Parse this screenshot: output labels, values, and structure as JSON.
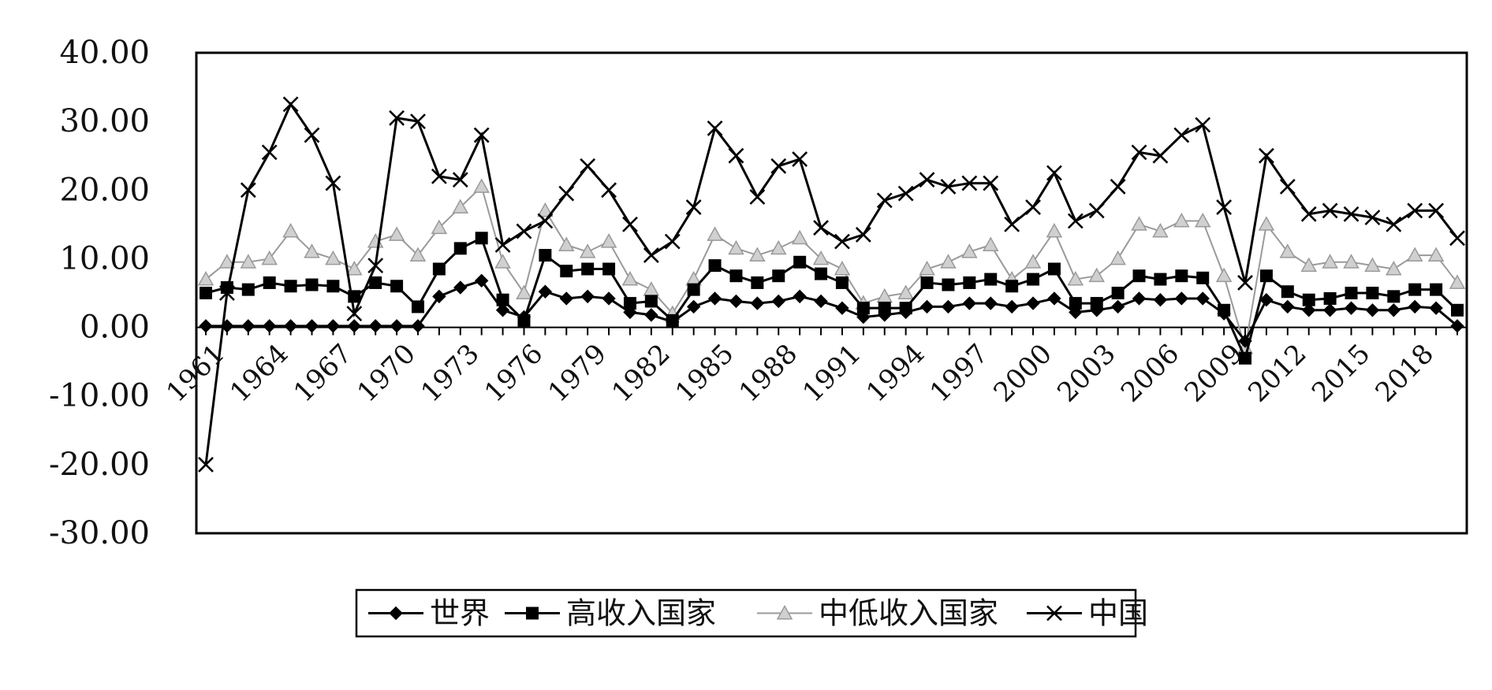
{
  "chart_data": {
    "type": "line",
    "title": "",
    "xlabel": "",
    "ylabel": "",
    "ylim": [
      -30,
      40
    ],
    "yticks": [
      "40.00",
      "30.00",
      "20.00",
      "10.00",
      "0.00",
      "-10.00",
      "-20.00",
      "-30.00"
    ],
    "xtick_labels": [
      "1961",
      "1964",
      "1967",
      "1970",
      "1973",
      "1976",
      "1979",
      "1982",
      "1985",
      "1988",
      "1991",
      "1994",
      "1997",
      "2000",
      "2003",
      "2006",
      "2009",
      "2012",
      "2015",
      "2018"
    ],
    "grid": false,
    "legend_position": "bottom",
    "x": [
      1961,
      1962,
      1963,
      1964,
      1965,
      1966,
      1967,
      1968,
      1969,
      1970,
      1971,
      1972,
      1973,
      1974,
      1975,
      1976,
      1977,
      1978,
      1979,
      1980,
      1981,
      1982,
      1983,
      1984,
      1985,
      1986,
      1987,
      1988,
      1989,
      1990,
      1991,
      1992,
      1993,
      1994,
      1995,
      1996,
      1997,
      1998,
      1999,
      2000,
      2001,
      2002,
      2003,
      2004,
      2005,
      2006,
      2007,
      2008,
      2009,
      2010,
      2011,
      2012,
      2013,
      2014,
      2015,
      2016,
      2017,
      2018,
      2019,
      2020
    ],
    "series": [
      {
        "name": "世界",
        "marker": "diamond",
        "color": "#000000",
        "values": [
          0.2,
          0.2,
          0.2,
          0.2,
          0.2,
          0.2,
          0.2,
          0.2,
          0.2,
          0.2,
          0.2,
          4.5,
          5.8,
          6.8,
          2.5,
          1.5,
          5.2,
          4.2,
          4.5,
          4.2,
          2.2,
          1.8,
          0.8,
          3.0,
          4.2,
          3.8,
          3.5,
          3.8,
          4.5,
          3.8,
          2.8,
          1.5,
          1.8,
          2.2,
          3.0,
          3.0,
          3.5,
          3.5,
          3.0,
          3.5,
          4.2,
          2.2,
          2.5,
          3.0,
          4.2,
          4.0,
          4.2,
          4.2,
          2.0,
          -2.0,
          4.0,
          3.0,
          2.5,
          2.5,
          2.8,
          2.5,
          2.5,
          3.0,
          2.8,
          0.2
        ]
      },
      {
        "name": "高收入国家",
        "marker": "square",
        "color": "#000000",
        "values": [
          5.0,
          5.8,
          5.5,
          6.5,
          6.0,
          6.2,
          6.0,
          4.5,
          6.5,
          6.0,
          3.0,
          8.5,
          11.5,
          13.0,
          4.0,
          1.0,
          10.5,
          8.2,
          8.5,
          8.5,
          3.5,
          3.8,
          1.0,
          5.5,
          9.0,
          7.5,
          6.5,
          7.5,
          9.5,
          7.8,
          6.5,
          2.8,
          2.8,
          2.8,
          6.5,
          6.2,
          6.5,
          7.0,
          6.0,
          7.0,
          8.5,
          3.5,
          3.5,
          5.0,
          7.5,
          7.0,
          7.5,
          7.2,
          2.5,
          -4.5,
          7.5,
          5.2,
          4.0,
          4.2,
          5.0,
          5.0,
          4.5,
          5.5,
          5.5,
          2.5
        ]
      },
      {
        "name": "中低收入国家",
        "marker": "triangle",
        "color": "#9a9a9a",
        "values": [
          7.0,
          9.5,
          9.5,
          10.0,
          14.0,
          11.0,
          10.0,
          8.5,
          12.5,
          13.5,
          10.5,
          14.5,
          17.5,
          20.5,
          9.5,
          5.0,
          17.0,
          12.0,
          11.0,
          12.5,
          7.0,
          5.5,
          2.0,
          7.0,
          13.5,
          11.5,
          10.5,
          11.5,
          13.0,
          10.0,
          8.5,
          3.5,
          4.5,
          5.0,
          8.5,
          9.5,
          11.0,
          12.0,
          7.0,
          9.5,
          14.0,
          7.0,
          7.5,
          10.0,
          15.0,
          14.0,
          15.5,
          15.5,
          7.5,
          -3.0,
          15.0,
          11.0,
          9.0,
          9.5,
          9.5,
          9.0,
          8.5,
          10.5,
          10.5,
          6.5
        ]
      },
      {
        "name": "中国",
        "marker": "x",
        "color": "#000000",
        "values": [
          -20.0,
          5.0,
          20.0,
          25.5,
          32.5,
          28.0,
          21.0,
          2.0,
          9.0,
          30.5,
          30.0,
          22.0,
          21.5,
          28.0,
          12.0,
          14.0,
          15.5,
          19.5,
          23.5,
          20.0,
          15.0,
          10.5,
          12.5,
          17.5,
          29.0,
          25.0,
          19.0,
          23.5,
          24.5,
          14.5,
          12.5,
          13.5,
          18.5,
          19.5,
          21.5,
          20.5,
          21.0,
          21.0,
          15.0,
          17.5,
          22.5,
          15.5,
          17.0,
          20.5,
          25.5,
          25.0,
          28.0,
          29.5,
          17.5,
          6.5,
          25.0,
          20.5,
          16.5,
          17.0,
          16.5,
          16.0,
          15.0,
          17.0,
          17.0,
          13.0
        ]
      }
    ]
  }
}
